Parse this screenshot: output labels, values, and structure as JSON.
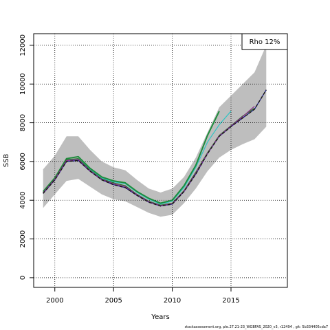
{
  "chart_data": {
    "type": "line",
    "title": "",
    "xlabel": "Years",
    "ylabel": "SSB",
    "xlim": [
      1998.2,
      2019.8
    ],
    "ylim": [
      -500,
      12600
    ],
    "x_ticks": [
      2000,
      2005,
      2010,
      2015
    ],
    "y_ticks": [
      0,
      2000,
      4000,
      6000,
      8000,
      10000,
      12000
    ],
    "grid": true,
    "legend": {
      "placement": "top-right",
      "text": "Rho 12%"
    },
    "band": {
      "x": [
        1999,
        2000,
        2001,
        2002,
        2003,
        2004,
        2005,
        2006,
        2007,
        2008,
        2009,
        2010,
        2011,
        2012,
        2013,
        2014,
        2015,
        2016,
        2017,
        2018
      ],
      "upper": [
        5600,
        6300,
        7300,
        7300,
        6600,
        6000,
        5700,
        5550,
        5050,
        4600,
        4400,
        4600,
        5200,
        6200,
        7500,
        8800,
        9400,
        10000,
        10600,
        12000
      ],
      "lower": [
        3600,
        4300,
        5000,
        5100,
        4700,
        4300,
        4050,
        3950,
        3650,
        3350,
        3150,
        3250,
        3850,
        4600,
        5500,
        6200,
        6600,
        6900,
        7150,
        7800
      ]
    },
    "series": [
      {
        "color": "#1a1a8c",
        "width": 1.2,
        "dash": "",
        "x": [
          1999,
          2000,
          2001,
          2002,
          2003,
          2004,
          2005,
          2006,
          2007,
          2008,
          2009,
          2010,
          2011,
          2012,
          2013,
          2014,
          2015,
          2016,
          2017,
          2018
        ],
        "y": [
          4350,
          5050,
          6000,
          6050,
          5500,
          5050,
          4800,
          4650,
          4250,
          3900,
          3700,
          3800,
          4450,
          5350,
          6400,
          7300,
          7800,
          8250,
          8700,
          9700
        ]
      },
      {
        "color": "#2ec4c4",
        "width": 1.2,
        "dash": "",
        "x": [
          1999,
          2000,
          2001,
          2002,
          2003,
          2004,
          2005,
          2006,
          2007,
          2008,
          2009,
          2010,
          2011,
          2012,
          2013,
          2014,
          2015
        ],
        "y": [
          4400,
          5100,
          6050,
          6150,
          5600,
          5150,
          4950,
          4850,
          4400,
          4050,
          3800,
          3950,
          4650,
          5700,
          7000,
          7900,
          8600
        ]
      },
      {
        "color": "#1e8c3c",
        "width": 2,
        "dash": "",
        "x": [
          1999,
          2000,
          2001,
          2002,
          2003,
          2004,
          2005,
          2006,
          2007,
          2008,
          2009,
          2010,
          2011,
          2012,
          2013,
          2014
        ],
        "y": [
          4450,
          5150,
          6150,
          6250,
          5650,
          5200,
          5000,
          4900,
          4450,
          4100,
          3850,
          4000,
          4750,
          5800,
          7350,
          8600
        ]
      },
      {
        "color": "#2a6e2a",
        "width": 1.2,
        "dash": "",
        "x": [
          1999,
          2000,
          2001,
          2002,
          2003,
          2004,
          2005,
          2006,
          2007,
          2008,
          2009,
          2010,
          2011,
          2012,
          2013,
          2014,
          2015,
          2016,
          2017
        ],
        "y": [
          4400,
          5100,
          6100,
          6150,
          5550,
          5100,
          4900,
          4750,
          4300,
          3950,
          3750,
          3850,
          4500,
          5450,
          6450,
          7350,
          7850,
          8350,
          8750
        ]
      },
      {
        "color": "#8a2a8a",
        "width": 1.2,
        "dash": "",
        "x": [
          1999,
          2000,
          2001,
          2002,
          2003,
          2004,
          2005,
          2006,
          2007,
          2008,
          2009,
          2010,
          2011,
          2012,
          2013,
          2014,
          2015,
          2016,
          2017
        ],
        "y": [
          4380,
          5080,
          6050,
          6100,
          5520,
          5070,
          4850,
          4700,
          4280,
          3920,
          3720,
          3820,
          4470,
          5400,
          6420,
          7320,
          7830,
          8320,
          8850
        ]
      },
      {
        "color": "#1a1a1a",
        "width": 1.5,
        "dash": "4,3",
        "x": [
          1999,
          2000,
          2001,
          2002,
          2003,
          2004,
          2005,
          2006,
          2007,
          2008,
          2009,
          2010,
          2011,
          2012,
          2013,
          2014,
          2015,
          2016,
          2017,
          2018
        ],
        "y": [
          4350,
          5050,
          6000,
          6050,
          5500,
          5050,
          4800,
          4650,
          4250,
          3900,
          3700,
          3800,
          4450,
          5350,
          6400,
          7300,
          7800,
          8250,
          8700,
          9700
        ]
      }
    ],
    "colors": {
      "band": "#bebebe",
      "grid": "#000000"
    }
  },
  "footer": "stockassessment.org, ple.27.21-23_WGBFAS_2020_v3, r12494 , git: 5b334405cda7"
}
